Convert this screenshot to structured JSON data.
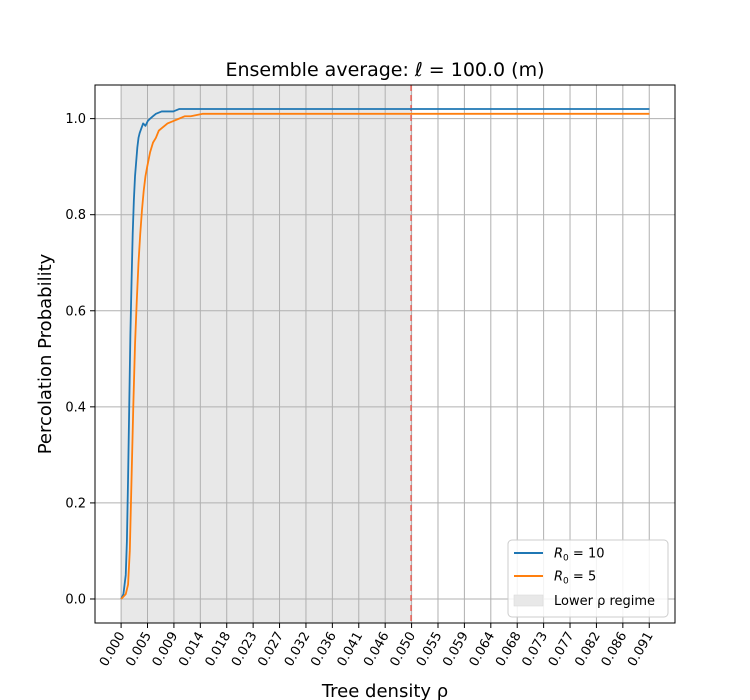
{
  "chart_data": {
    "type": "line",
    "title": "Ensemble average: ℓ = 100.0 (m)",
    "xlabel": "Tree density ρ",
    "ylabel": "Percolation Probability",
    "xlim": [
      -0.0045,
      0.0955
    ],
    "ylim": [
      -0.05,
      1.07
    ],
    "grid": true,
    "legend_position": "lower-right",
    "x_ticks": [
      {
        "value": 0.0,
        "label": "0.000"
      },
      {
        "value": 0.004553,
        "label": "0.005"
      },
      {
        "value": 0.009106,
        "label": "0.009"
      },
      {
        "value": 0.013659,
        "label": "0.014"
      },
      {
        "value": 0.018212,
        "label": "0.018"
      },
      {
        "value": 0.022765,
        "label": "0.023"
      },
      {
        "value": 0.027318,
        "label": "0.027"
      },
      {
        "value": 0.031871,
        "label": "0.032"
      },
      {
        "value": 0.036424,
        "label": "0.036"
      },
      {
        "value": 0.040977,
        "label": "0.041"
      },
      {
        "value": 0.04553,
        "label": "0.046"
      },
      {
        "value": 0.050083,
        "label": "0.050"
      },
      {
        "value": 0.054636,
        "label": "0.055"
      },
      {
        "value": 0.059189,
        "label": "0.059"
      },
      {
        "value": 0.063742,
        "label": "0.064"
      },
      {
        "value": 0.068295,
        "label": "0.068"
      },
      {
        "value": 0.072848,
        "label": "0.073"
      },
      {
        "value": 0.077401,
        "label": "0.077"
      },
      {
        "value": 0.081954,
        "label": "0.082"
      },
      {
        "value": 0.086507,
        "label": "0.086"
      },
      {
        "value": 0.09106,
        "label": "0.091"
      }
    ],
    "y_ticks": [
      {
        "value": 0.0,
        "label": "0.0"
      },
      {
        "value": 0.2,
        "label": "0.2"
      },
      {
        "value": 0.4,
        "label": "0.4"
      },
      {
        "value": 0.6,
        "label": "0.6"
      },
      {
        "value": 0.8,
        "label": "0.8"
      },
      {
        "value": 1.0,
        "label": "1.0"
      }
    ],
    "shaded_region": {
      "x_start": 0.0,
      "x_end": 0.05,
      "label": "Lower ρ regime",
      "color": "#e8e8e8"
    },
    "threshold_line": {
      "x": 0.05,
      "color": "#e8665c",
      "style": "dashed"
    },
    "series": [
      {
        "name": "R0 = 10",
        "legend_label": {
          "var": "R",
          "sub": "0",
          "text": " =  10"
        },
        "color": "#1f77b4",
        "x": [
          0.0,
          0.0004,
          0.0006,
          0.0008,
          0.001,
          0.0012,
          0.0014,
          0.0016,
          0.0018,
          0.002,
          0.0022,
          0.0024,
          0.0026,
          0.0028,
          0.003,
          0.0032,
          0.0035,
          0.0038,
          0.0042,
          0.0046,
          0.005,
          0.0055,
          0.006,
          0.007,
          0.008,
          0.009,
          0.01,
          0.011,
          0.013,
          0.02,
          0.05,
          0.0911
        ],
        "y": [
          0.0,
          0.01,
          0.03,
          0.05,
          0.12,
          0.25,
          0.4,
          0.55,
          0.66,
          0.76,
          0.83,
          0.88,
          0.91,
          0.94,
          0.96,
          0.97,
          0.98,
          0.99,
          0.985,
          0.995,
          1.0,
          1.005,
          1.01,
          1.015,
          1.015,
          1.015,
          1.02,
          1.02,
          1.02,
          1.02,
          1.02,
          1.02
        ]
      },
      {
        "name": "R0 = 5",
        "legend_label": {
          "var": "R",
          "sub": "0",
          "text": " =  5"
        },
        "color": "#ff7f0e",
        "x": [
          0.0,
          0.0004,
          0.0008,
          0.0012,
          0.0015,
          0.0018,
          0.0021,
          0.0024,
          0.0027,
          0.003,
          0.0033,
          0.0036,
          0.0039,
          0.0042,
          0.0045,
          0.005,
          0.0055,
          0.006,
          0.0065,
          0.007,
          0.008,
          0.009,
          0.01,
          0.011,
          0.012,
          0.014,
          0.018,
          0.05,
          0.0911
        ],
        "y": [
          0.0,
          0.005,
          0.01,
          0.03,
          0.1,
          0.25,
          0.4,
          0.53,
          0.62,
          0.7,
          0.76,
          0.81,
          0.85,
          0.88,
          0.9,
          0.93,
          0.95,
          0.96,
          0.975,
          0.98,
          0.99,
          0.995,
          1.0,
          1.005,
          1.005,
          1.01,
          1.01,
          1.01,
          1.01
        ]
      }
    ]
  }
}
